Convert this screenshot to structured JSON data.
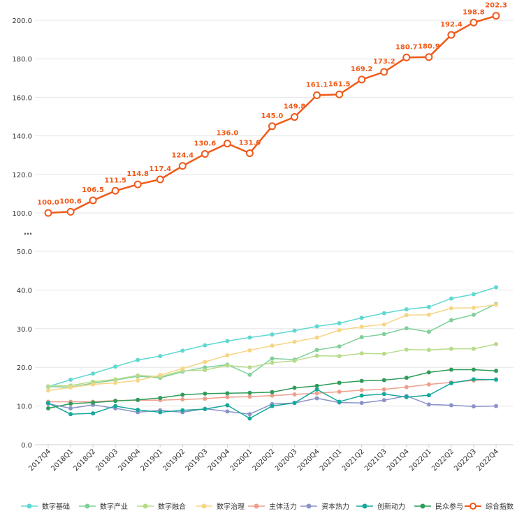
{
  "chart_data": {
    "type": "line",
    "title": "",
    "xlabel": "",
    "ylabel": "",
    "broken_axis_marker": "…",
    "upper_axis": {
      "ylim": [
        100,
        200
      ],
      "ticks": [
        "100.0",
        "120.0",
        "140.0",
        "160.0",
        "180.0",
        "200.0"
      ]
    },
    "lower_axis": {
      "ylim": [
        0,
        50
      ],
      "ticks": [
        "0.0",
        "10.0",
        "20.0",
        "30.0",
        "40.0",
        "50.0"
      ]
    },
    "categories": [
      "2017Q4",
      "2018Q1",
      "2018Q2",
      "2018Q3",
      "2018Q4",
      "2019Q1",
      "2019Q2",
      "2019Q3",
      "2019Q4",
      "2020Q1",
      "2020Q2",
      "2020Q3",
      "2020Q4",
      "2021Q1",
      "2021Q2",
      "2021Q3",
      "2021Q4",
      "2022Q1",
      "2022Q2",
      "2022Q3",
      "2022Q4"
    ],
    "legend_position": "bottom",
    "main_series": {
      "name": "综合指数",
      "color": "#f05a1a",
      "values": [
        100.0,
        100.6,
        106.5,
        111.5,
        114.8,
        117.4,
        124.4,
        130.6,
        136.0,
        131.0,
        145.0,
        149.8,
        161.1,
        161.5,
        169.2,
        173.2,
        180.7,
        180.9,
        192.4,
        198.8,
        202.3
      ],
      "labels": [
        "100.0",
        "100.6",
        "106.5",
        "111.5",
        "114.8",
        "117.4",
        "124.4",
        "130.6",
        "136.0",
        "131.0",
        "145.0",
        "149.8",
        "161.1",
        "161.5",
        "169.2",
        "173.2",
        "180.7",
        "180.9",
        "192.4",
        "198.8",
        "202.3"
      ]
    },
    "series": [
      {
        "name": "数字基础",
        "color": "#5ed8d2",
        "values": [
          15.0,
          16.8,
          18.4,
          20.2,
          21.9,
          22.9,
          24.3,
          25.7,
          26.8,
          27.7,
          28.5,
          29.5,
          30.6,
          31.4,
          32.8,
          34.0,
          35.0,
          35.6,
          37.8,
          38.9,
          40.7
        ]
      },
      {
        "name": "数字产业",
        "color": "#7fd09a",
        "values": [
          15.0,
          14.9,
          15.9,
          16.7,
          17.7,
          17.3,
          18.9,
          20.0,
          20.7,
          18.1,
          22.3,
          22.0,
          24.5,
          25.4,
          27.8,
          28.6,
          30.1,
          29.2,
          32.2,
          33.6,
          36.4
        ]
      },
      {
        "name": "数字融合",
        "color": "#b7db8a",
        "values": [
          15.1,
          15.3,
          16.3,
          16.9,
          17.9,
          17.6,
          19.1,
          19.3,
          20.5,
          20.0,
          21.2,
          21.7,
          23.0,
          22.9,
          23.6,
          23.5,
          24.6,
          24.5,
          24.8,
          24.8,
          26.0
        ]
      },
      {
        "name": "数字治理",
        "color": "#f6d585",
        "values": [
          14.0,
          14.8,
          15.6,
          16.0,
          16.6,
          18.0,
          19.7,
          21.4,
          23.1,
          24.4,
          25.6,
          26.6,
          27.7,
          29.6,
          30.5,
          31.1,
          33.5,
          33.6,
          35.3,
          35.4,
          36.2
        ]
      },
      {
        "name": "主体活力",
        "color": "#ee9f8c",
        "values": [
          11.1,
          11.1,
          11.1,
          11.4,
          11.5,
          11.5,
          11.7,
          11.9,
          12.3,
          12.4,
          12.7,
          13.0,
          13.3,
          13.7,
          14.1,
          14.3,
          14.9,
          15.6,
          16.1,
          16.6,
          16.9
        ]
      },
      {
        "name": "资本热力",
        "color": "#8b93c8",
        "values": [
          10.6,
          9.4,
          10.3,
          9.4,
          8.4,
          8.9,
          8.4,
          9.3,
          8.6,
          7.9,
          10.5,
          10.8,
          12.0,
          10.9,
          10.8,
          11.5,
          12.6,
          10.4,
          10.2,
          9.9,
          10.0
        ]
      },
      {
        "name": "创新动力",
        "color": "#15a89b",
        "values": [
          10.8,
          7.9,
          8.1,
          10.0,
          9.0,
          8.4,
          8.9,
          9.2,
          10.2,
          6.8,
          10.0,
          10.8,
          14.3,
          11.1,
          12.7,
          13.1,
          12.3,
          12.8,
          15.9,
          16.9,
          16.8
        ]
      },
      {
        "name": "民众参与",
        "color": "#2f9c5a",
        "values": [
          9.4,
          10.6,
          10.9,
          11.3,
          11.6,
          12.1,
          12.9,
          13.2,
          13.3,
          13.4,
          13.6,
          14.7,
          15.2,
          16.0,
          16.5,
          16.7,
          17.3,
          18.7,
          19.4,
          19.4,
          19.1
        ]
      }
    ]
  }
}
